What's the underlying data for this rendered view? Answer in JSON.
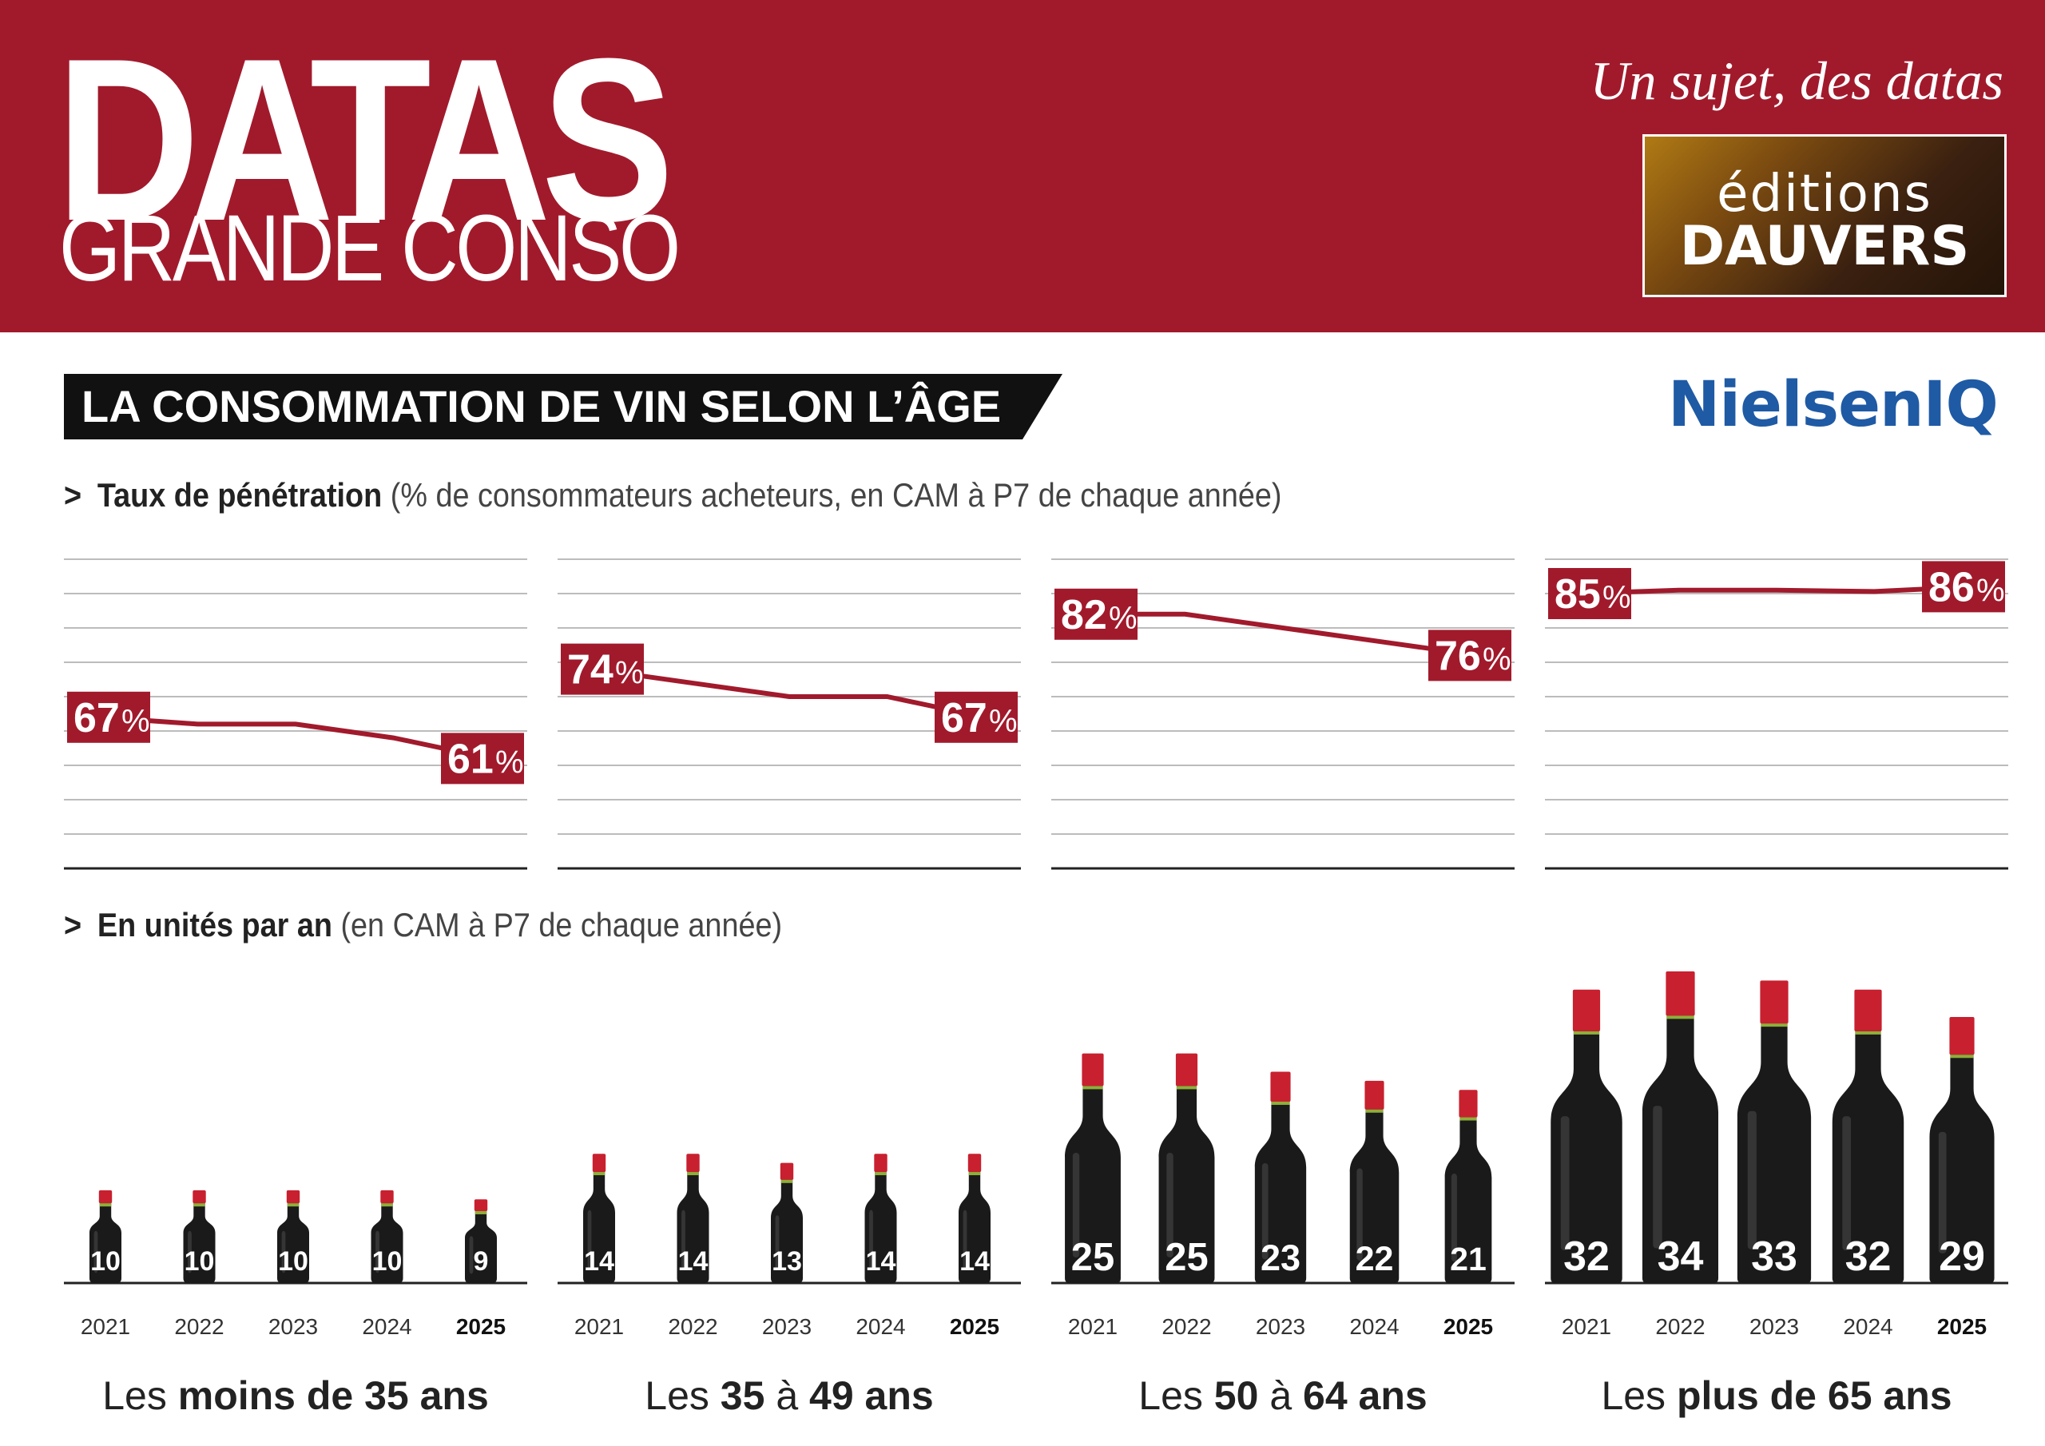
{
  "header": {
    "title": "DATAS",
    "subtitle": "GRANDE CONSO",
    "tagline": "Un sujet, des datas",
    "publisher_line1": "éditions",
    "publisher_line2": "DAUVERS",
    "brand_color": "#a11a2c"
  },
  "section": {
    "title": "LA CONSOMMATION DE VIN SELON L’ÂGE",
    "source_logo": "NielsenIQ",
    "source_color": "#1f5aa5"
  },
  "penetration": {
    "arrow": ">",
    "heading_strong": "Taux de pénétration",
    "heading_rest": "(% de consommateurs acheteurs, en CAM à P7 de chaque année)"
  },
  "units": {
    "arrow": ">",
    "heading_strong": "En unités par an",
    "heading_rest": "(en CAM à P7 de chaque année)"
  },
  "chart_data": [
    {
      "type": "line",
      "panel": "penetration",
      "x": [
        "2021",
        "2022",
        "2023",
        "2024",
        "2025"
      ],
      "unit": "%",
      "series": [
        {
          "group": "Les moins de 35 ans",
          "values": [
            67,
            66,
            66,
            64,
            61
          ],
          "labels": [
            {
              "x": "2021",
              "text": "67"
            },
            {
              "x": "2025",
              "text": "61"
            }
          ]
        },
        {
          "group": "Les 35 à 49 ans",
          "values": [
            74,
            72,
            70,
            70,
            67
          ],
          "labels": [
            {
              "x": "2021",
              "text": "74"
            },
            {
              "x": "2025",
              "text": "67"
            }
          ]
        },
        {
          "group": "Les 50 à 64 ans",
          "values": [
            82,
            82,
            80,
            78,
            76
          ],
          "labels": [
            {
              "x": "2021",
              "text": "82"
            },
            {
              "x": "2025",
              "text": "76"
            }
          ]
        },
        {
          "group": "Les plus de 65 ans",
          "values": [
            85,
            85.5,
            85.5,
            85.3,
            86
          ],
          "labels": [
            {
              "x": "2021",
              "text": "85"
            },
            {
              "x": "2025",
              "text": "86"
            }
          ]
        }
      ],
      "grid": true,
      "line_color": "#a11a2c"
    },
    {
      "type": "bar",
      "panel": "units",
      "style": "wine-bottle pictogram",
      "x": [
        "2021",
        "2022",
        "2023",
        "2024",
        "2025"
      ],
      "highlight_x": "2025",
      "series": [
        {
          "group": "Les moins de 35 ans",
          "values": [
            10,
            10,
            10,
            10,
            9
          ]
        },
        {
          "group": "Les 35 à 49 ans",
          "values": [
            14,
            14,
            13,
            14,
            14
          ]
        },
        {
          "group": "Les 50 à 64 ans",
          "values": [
            25,
            25,
            23,
            22,
            21
          ]
        },
        {
          "group": "Les plus de 65 ans",
          "values": [
            32,
            34,
            33,
            32,
            29
          ]
        }
      ],
      "bottle_color": "#1a1a1a",
      "cap_color": "#c8202f"
    }
  ],
  "groups": [
    {
      "prefix": "Les",
      "strong": "moins de 35 ans"
    },
    {
      "prefix": "Les",
      "strong": "35",
      "middle": "à",
      "strong2": "49 ans"
    },
    {
      "prefix": "Les",
      "strong": "50",
      "middle": "à",
      "strong2": "64 ans"
    },
    {
      "prefix": "Les",
      "strong": "plus de 65 ans"
    }
  ]
}
